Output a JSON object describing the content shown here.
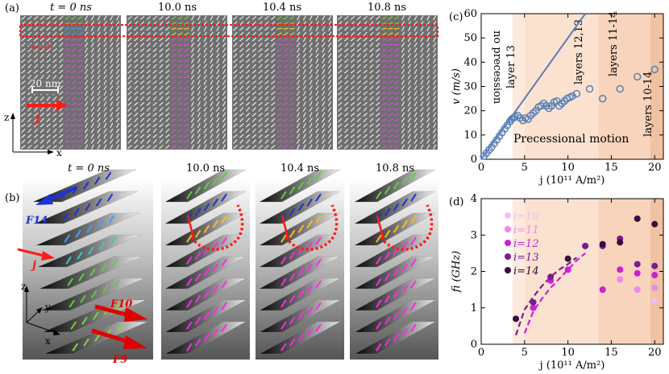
{
  "panel_a": {
    "label": "(a)",
    "time_labels": [
      "t = 0 ns",
      "10.0 ns",
      "10.4 ns",
      "10.8 ns"
    ],
    "layer_label": "i=13",
    "scale_bar": "20 nm",
    "current_label": "j",
    "axis_z": "z",
    "axis_x": "x"
  },
  "panel_b": {
    "label": "(b)",
    "time_labels": [
      "t = 0 ns",
      "10.0 ns",
      "10.4 ns",
      "10.8 ns"
    ],
    "force_labels": [
      "F14",
      "F10",
      "F9"
    ],
    "current_label": "j",
    "axis_z": "z",
    "axis_y": "y",
    "axis_x": "x"
  },
  "chart_data": [
    {
      "type": "scatter",
      "label": "(c)",
      "xlabel": "j (10¹¹ A/m²)",
      "ylabel": "v (m/s)",
      "xlim": [
        0,
        21
      ],
      "ylim": [
        0,
        60
      ],
      "xticks": [
        0,
        5,
        10,
        15,
        20
      ],
      "yticks": [
        0,
        10,
        20,
        30,
        40,
        50,
        60
      ],
      "grid": false,
      "region_labels": [
        "no precession",
        "layer 13",
        "layers 12,13",
        "layers 11-14",
        "layers 10-14",
        "Precessional motion"
      ],
      "region_bounds": [
        0,
        3.6,
        5,
        13.5,
        19.5,
        21
      ],
      "line": {
        "x": [
          0,
          12
        ],
        "y": [
          0,
          60
        ],
        "color": "#5a7fb5"
      },
      "points": {
        "x": [
          0.3,
          0.6,
          0.9,
          1.2,
          1.5,
          1.8,
          2.1,
          2.4,
          2.7,
          3.0,
          3.3,
          3.5,
          3.7,
          3.9,
          4.2,
          4.5,
          4.8,
          5.1,
          5.4,
          5.7,
          6.0,
          6.3,
          6.6,
          6.9,
          7.2,
          7.5,
          7.8,
          8.1,
          8.4,
          8.7,
          9.0,
          9.3,
          9.6,
          9.9,
          10.2,
          10.5,
          11.0,
          12.5,
          14.0,
          16.0,
          18.0,
          20.0
        ],
        "y": [
          1.3,
          2.5,
          3.8,
          5.0,
          6.5,
          8.0,
          9.5,
          11.0,
          12.5,
          14.0,
          15.5,
          16.5,
          17.0,
          17.5,
          18.0,
          17.0,
          16.0,
          17.0,
          16.5,
          18.0,
          19.0,
          20.0,
          21.5,
          22.0,
          23.0,
          22.0,
          21.0,
          22.0,
          23.5,
          24.0,
          22.0,
          23.0,
          24.0,
          25.0,
          25.5,
          26.0,
          27.0,
          29.0,
          25.0,
          29.0,
          34.0,
          37.0
        ],
        "color": "#5a7fb5"
      }
    },
    {
      "type": "scatter",
      "label": "(d)",
      "xlabel": "j (10¹¹ A/m²)",
      "ylabel": "fi (GHz)",
      "xlim": [
        0,
        21
      ],
      "ylim": [
        0,
        4
      ],
      "xticks": [
        0,
        5,
        10,
        15,
        20
      ],
      "yticks": [
        0,
        1,
        2,
        3,
        4
      ],
      "grid": false,
      "legend_position": "top-left",
      "region_bounds": [
        0,
        3.6,
        5,
        13.5,
        19.5,
        21
      ],
      "series": [
        {
          "name": "i=10",
          "color": "#f3bdf0",
          "x": [
            16,
            18,
            20
          ],
          "y": [
            2.05,
            1.5,
            1.2
          ]
        },
        {
          "name": "i=11",
          "color": "#eb8ae6",
          "x": [
            14,
            16,
            18,
            20
          ],
          "y": [
            1.5,
            1.78,
            1.5,
            1.55
          ]
        },
        {
          "name": "i=12",
          "color": "#cc1fd6",
          "x": [
            6,
            8,
            10,
            12,
            14,
            16,
            18,
            20
          ],
          "y": [
            1.0,
            1.75,
            2.05,
            2.7,
            1.5,
            2.05,
            1.95,
            1.9
          ]
        },
        {
          "name": "i=13",
          "color": "#7a1c8a",
          "x": [
            6,
            8,
            12,
            14,
            16,
            18,
            20
          ],
          "y": [
            1.15,
            1.85,
            2.7,
            2.7,
            2.9,
            2.2,
            2.15
          ]
        },
        {
          "name": "i=14",
          "color": "#3a0b3f",
          "x": [
            4,
            10,
            14,
            16,
            18,
            20
          ],
          "y": [
            0.7,
            2.35,
            2.75,
            2.8,
            3.45,
            3.3
          ]
        }
      ],
      "fits": [
        {
          "color": "#7a1c8a",
          "x": [
            4,
            5,
            6,
            7,
            8,
            9,
            10,
            11
          ],
          "y": [
            0.25,
            0.95,
            1.3,
            1.6,
            1.85,
            2.05,
            2.2,
            2.38
          ]
        },
        {
          "color": "#cc1fd6",
          "x": [
            5,
            6,
            7,
            8,
            9,
            10,
            11,
            12
          ],
          "y": [
            0.3,
            0.9,
            1.25,
            1.55,
            1.8,
            2.05,
            2.3,
            2.5
          ]
        }
      ]
    }
  ]
}
